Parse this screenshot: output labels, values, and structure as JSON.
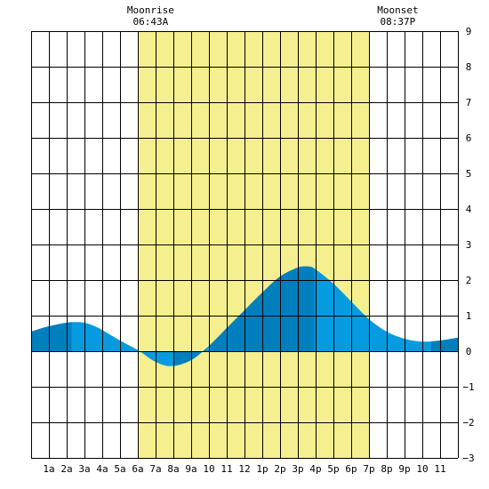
{
  "chart_data": {
    "type": "area",
    "title": "",
    "xlabel": "",
    "ylabel": "",
    "xlim": [
      0,
      24
    ],
    "ylim": [
      -3,
      9
    ],
    "yticks": [
      9,
      8,
      7,
      6,
      5,
      4,
      3,
      2,
      1,
      0,
      -1,
      -2,
      -3
    ],
    "ytick_labels": [
      "9",
      "8",
      "7",
      "6",
      "5",
      "4",
      "3",
      "2",
      "1",
      "0",
      "−1",
      "−2",
      "−3"
    ],
    "xticks": [
      1,
      2,
      3,
      4,
      5,
      6,
      7,
      8,
      9,
      10,
      11,
      12,
      13,
      14,
      15,
      16,
      17,
      18,
      19,
      20,
      21,
      22,
      23
    ],
    "xtick_labels": [
      "1a",
      "2a",
      "3a",
      "4a",
      "5a",
      "6a",
      "7a",
      "8a",
      "9a",
      "10",
      "11",
      "12",
      "1p",
      "2p",
      "3p",
      "4p",
      "5p",
      "6p",
      "7p",
      "8p",
      "9p",
      "10",
      "11"
    ],
    "grid": true,
    "daylight": {
      "start": 6.0,
      "end": 19.0,
      "color": "#f5ef8f"
    },
    "moon_events": [
      {
        "label": "Moonrise",
        "time": "06:43A",
        "hour": 6.72
      },
      {
        "label": "Moonset",
        "time": "08:37P",
        "hour": 20.62
      }
    ],
    "tide_points": [
      {
        "x": 0,
        "y": 0.55
      },
      {
        "x": 1,
        "y": 0.7
      },
      {
        "x": 2.4,
        "y": 0.82
      },
      {
        "x": 3.5,
        "y": 0.72
      },
      {
        "x": 5,
        "y": 0.3
      },
      {
        "x": 6,
        "y": 0.03
      },
      {
        "x": 7,
        "y": -0.3
      },
      {
        "x": 7.9,
        "y": -0.42
      },
      {
        "x": 9,
        "y": -0.25
      },
      {
        "x": 10,
        "y": 0.15
      },
      {
        "x": 11,
        "y": 0.65
      },
      {
        "x": 12,
        "y": 1.15
      },
      {
        "x": 13,
        "y": 1.65
      },
      {
        "x": 14,
        "y": 2.1
      },
      {
        "x": 15,
        "y": 2.35
      },
      {
        "x": 15.6,
        "y": 2.38
      },
      {
        "x": 16,
        "y": 2.3
      },
      {
        "x": 17,
        "y": 1.9
      },
      {
        "x": 18,
        "y": 1.4
      },
      {
        "x": 19,
        "y": 0.9
      },
      {
        "x": 20,
        "y": 0.55
      },
      {
        "x": 21,
        "y": 0.35
      },
      {
        "x": 22,
        "y": 0.27
      },
      {
        "x": 23,
        "y": 0.3
      },
      {
        "x": 24,
        "y": 0.38
      }
    ],
    "dark_bands": [
      {
        "from": 0,
        "to": 2.3
      },
      {
        "from": 8.0,
        "to": 9.9
      },
      {
        "from": 10.0,
        "to": 15.95
      },
      {
        "from": 22.5,
        "to": 24
      }
    ],
    "colors": {
      "tide_light": "#069be0",
      "tide_dark": "#007fbf",
      "grid": "#000000",
      "background": "#ffffff"
    }
  }
}
